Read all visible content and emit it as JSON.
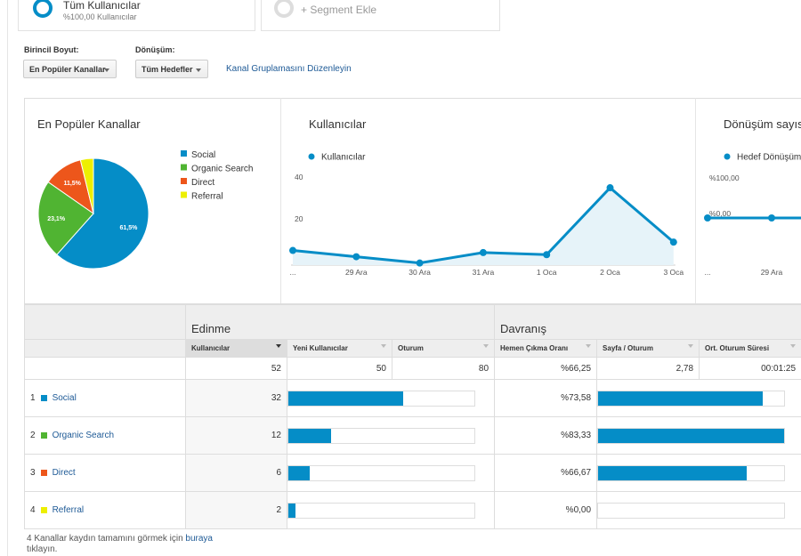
{
  "segments": [
    {
      "title": "Tüm Kullanıcılar",
      "subtitle": "%100,00 Kullanıcılar"
    },
    {
      "title": "+ Segment Ekle"
    }
  ],
  "controls": {
    "primary_label": "Birincil Boyut:",
    "primary_value": "En Popüler Kanallar",
    "conversion_label": "Dönüşüm:",
    "conversion_value": "Tüm Hedefler",
    "edit_link": "Kanal Gruplamasını Düzenleyin"
  },
  "chart_data": [
    {
      "type": "pie",
      "title": "En Popüler Kanallar",
      "categories": [
        "Social",
        "Organic Search",
        "Direct",
        "Referral"
      ],
      "values": [
        61.5,
        23.1,
        11.5,
        3.8
      ],
      "value_labels": [
        "61,5%",
        "23,1%",
        "11,5%",
        null
      ],
      "colors": [
        "#058dc7",
        "#50b432",
        "#ed561b",
        "#edef00"
      ]
    },
    {
      "type": "line",
      "title": "Kullanıcılar",
      "categories": [
        "...",
        "29 Ara",
        "30 Ara",
        "31 Ara",
        "1 Oca",
        "2 Oca",
        "3 Oca"
      ],
      "series": [
        {
          "name": "Kullanıcılar",
          "color": "#058dc7",
          "values": [
            7,
            4,
            1,
            6,
            5,
            37,
            11
          ]
        }
      ],
      "ylim": [
        0,
        40
      ],
      "yticks": [
        20,
        40
      ],
      "fill_area": true
    },
    {
      "type": "line",
      "title": "Dönüşüm sayısı",
      "categories": [
        "...",
        "29 Ara",
        null
      ],
      "series": [
        {
          "name": "Hedef Dönüşüm",
          "color": "#058dc7",
          "values": [
            0,
            0,
            0
          ]
        }
      ],
      "ylim": [
        0,
        100
      ],
      "yticks": [
        {
          "value": 0,
          "label": "%0,00"
        },
        {
          "value": 100,
          "label": "%100,00"
        }
      ],
      "fill_area": false
    }
  ],
  "table": {
    "groups": [
      "Edinme",
      "Davranış"
    ],
    "columns": [
      "Kullanıcılar",
      "Yeni Kullanıcılar",
      "Oturum",
      "Hemen Çıkma Oranı",
      "Sayfa / Oturum",
      "Ort. Oturum Süresi"
    ],
    "totals": [
      52,
      50,
      80,
      "%66,25",
      "2,78",
      "00:01:25"
    ],
    "rows": [
      {
        "rank": 1,
        "channel": "Social",
        "users": 32,
        "bounce": {
          "value": 73.58,
          "label": "%73,58"
        }
      },
      {
        "rank": 2,
        "channel": "Organic Search",
        "users": 12,
        "bounce": {
          "value": 83.33,
          "label": "%83,33"
        }
      },
      {
        "rank": 3,
        "channel": "Direct",
        "users": 6,
        "bounce": {
          "value": 66.67,
          "label": "%66,67"
        }
      },
      {
        "rank": 4,
        "channel": "Referral",
        "users": 2,
        "bounce": {
          "value": 0,
          "label": "%0,00"
        }
      }
    ]
  },
  "footer": {
    "text": "4 Kanallar kaydın tamamını görmek için",
    "link": "buraya",
    "end": "tıklayın."
  }
}
